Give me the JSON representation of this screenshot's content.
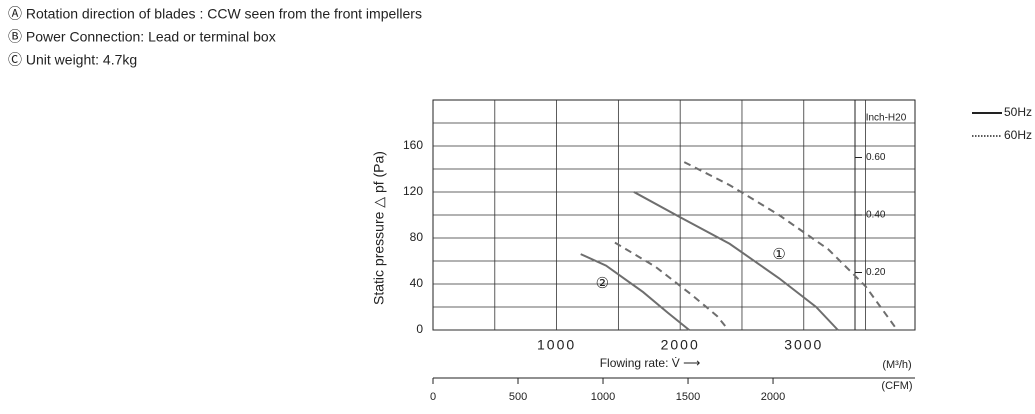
{
  "notes": [
    "Ⓐ Rotation direction of blades : CCW seen from the front impellers",
    "Ⓑ Power Connection: Lead or terminal box",
    "Ⓒ Unit weight:  4.7kg"
  ],
  "chart_data": {
    "type": "line",
    "ylabel": "Static pressure △ pf (Pa)",
    "xlabel": "Flowing rate: V̇ ⟶",
    "xunit": "(M³/h)",
    "x2unit": "(CFM)",
    "y2unit": "Inch-H20",
    "xlim": [
      0,
      3900
    ],
    "xticks": [
      1000,
      2000,
      3000
    ],
    "xgrid": [
      500,
      1500,
      2500,
      3500
    ],
    "x2lim": [
      0,
      2835
    ],
    "x2ticks": [
      0,
      500,
      1000,
      1500,
      2000
    ],
    "ylim": [
      0,
      200
    ],
    "yticks": [
      0,
      40,
      80,
      120,
      160
    ],
    "ygrid": [
      20,
      60,
      100,
      140,
      180
    ],
    "y2lim": [
      0,
      0.8
    ],
    "y2ticks": [
      {
        "value": 0.2,
        "label": "0.20"
      },
      {
        "value": 0.4,
        "label": "0.40"
      },
      {
        "value": 0.6,
        "label": "0.60"
      }
    ],
    "series": [
      {
        "name": "50Hz",
        "color": "#6e6e6e",
        "dash": "solid",
        "x": [
          1626,
          2000,
          2400,
          2800,
          3100,
          3276
        ],
        "values": [
          120,
          98,
          75,
          45,
          20,
          0
        ]
      },
      {
        "name": "60Hz",
        "color": "#6e6e6e",
        "dash": "dashed",
        "x": [
          2033,
          2400,
          2800,
          3200,
          3500,
          3756
        ],
        "values": [
          146,
          126,
          100,
          70,
          38,
          0
        ]
      },
      {
        "name": "50Hz",
        "color": "#6e6e6e",
        "dash": "solid",
        "x": [
          1195,
          1400,
          1700,
          1900,
          2073
        ],
        "values": [
          66,
          56,
          33,
          15,
          0
        ]
      },
      {
        "name": "60Hz",
        "color": "#6e6e6e",
        "dash": "dashed",
        "x": [
          1472,
          1800,
          2100,
          2300,
          2390
        ],
        "values": [
          76,
          55,
          30,
          12,
          0
        ]
      }
    ],
    "annotations": [
      {
        "text": "①",
        "x": 2800,
        "y": 65
      },
      {
        "text": "②",
        "x": 1370,
        "y": 40
      }
    ]
  }
}
